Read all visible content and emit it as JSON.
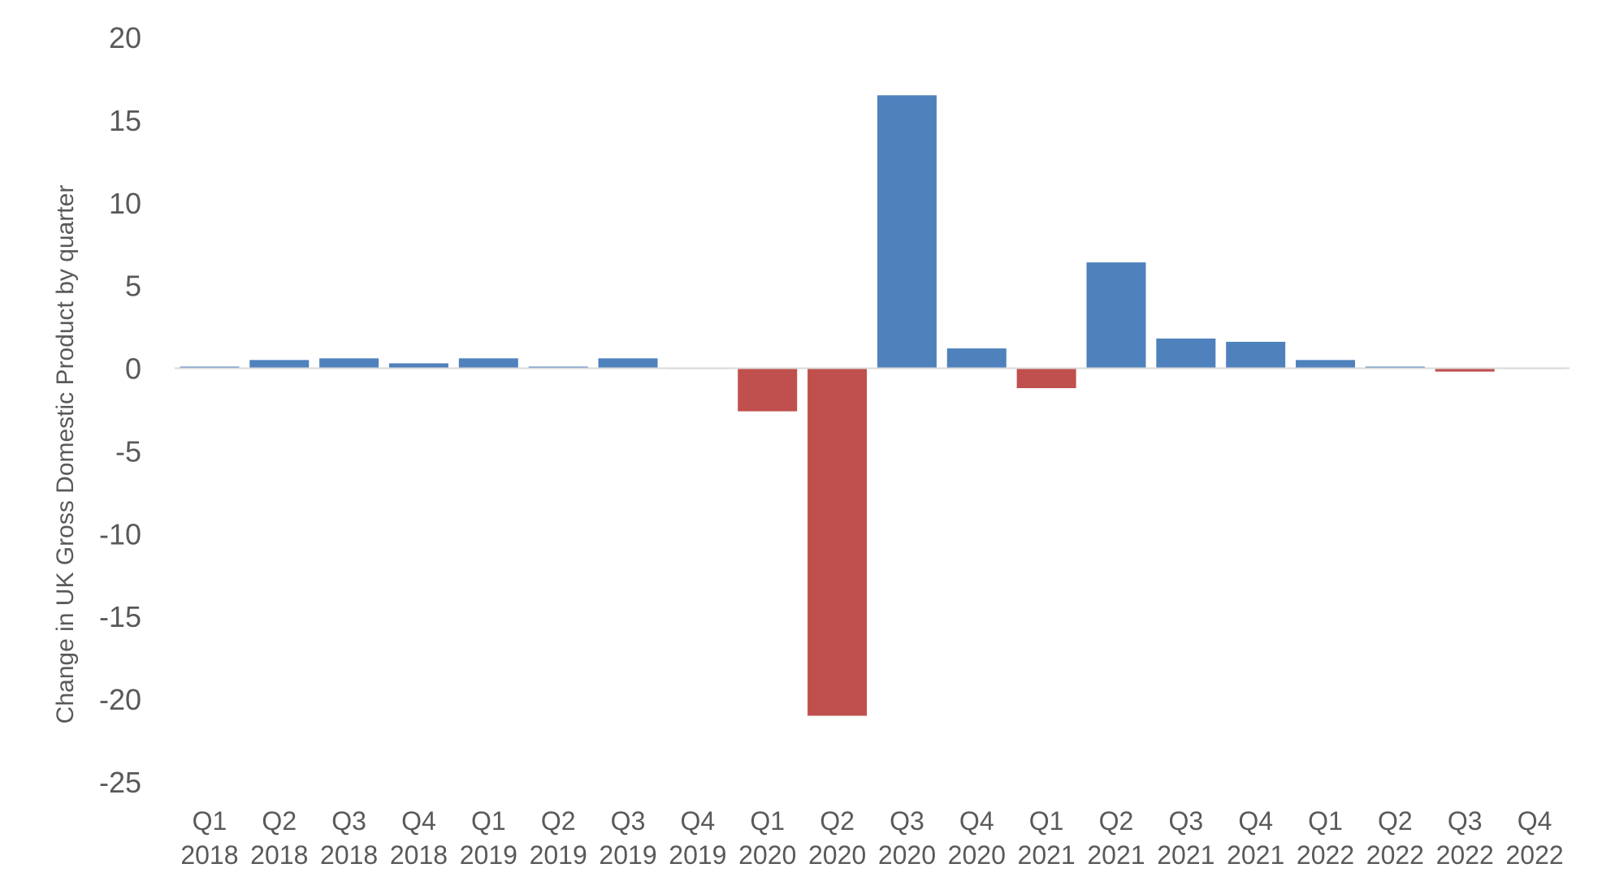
{
  "chart_data": {
    "type": "bar",
    "title": "",
    "xlabel": "",
    "ylabel": "Change in UK Gross Domestic Product by quarter",
    "ylim": [
      -25,
      20
    ],
    "yticks": [
      20,
      15,
      10,
      5,
      0,
      -5,
      -10,
      -15,
      -20,
      -25
    ],
    "grid": false,
    "legend": "none",
    "categories": [
      [
        "Q1",
        "2018"
      ],
      [
        "Q2",
        "2018"
      ],
      [
        "Q3",
        "2018"
      ],
      [
        "Q4",
        "2018"
      ],
      [
        "Q1",
        "2019"
      ],
      [
        "Q2",
        "2019"
      ],
      [
        "Q3",
        "2019"
      ],
      [
        "Q4",
        "2019"
      ],
      [
        "Q1",
        "2020"
      ],
      [
        "Q2",
        "2020"
      ],
      [
        "Q3",
        "2020"
      ],
      [
        "Q4",
        "2020"
      ],
      [
        "Q1",
        "2021"
      ],
      [
        "Q2",
        "2021"
      ],
      [
        "Q3",
        "2021"
      ],
      [
        "Q4",
        "2021"
      ],
      [
        "Q1",
        "2022"
      ],
      [
        "Q2",
        "2022"
      ],
      [
        "Q3",
        "2022"
      ],
      [
        "Q4",
        "2022"
      ]
    ],
    "values": [
      0.1,
      0.5,
      0.6,
      0.3,
      0.6,
      0.1,
      0.6,
      0.0,
      -2.6,
      -21.0,
      16.5,
      1.2,
      -1.2,
      6.4,
      1.8,
      1.6,
      0.5,
      0.1,
      -0.2,
      0.0
    ],
    "colors": {
      "positive": "#4f81bd",
      "negative": "#c0504d",
      "axis": "#d9d9d9"
    }
  }
}
